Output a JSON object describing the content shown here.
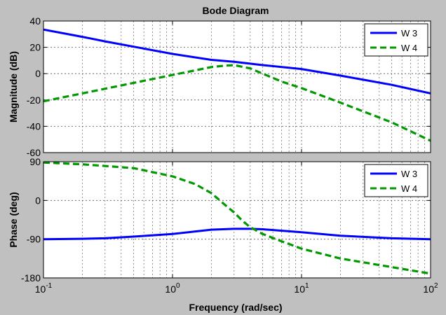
{
  "chart_data": {
    "type": "line",
    "title": "Bode Diagram",
    "xlabel": "Frequency  (rad/sec)",
    "x_scale": "log",
    "xlim": [
      0.1,
      100
    ],
    "x_ticks": [
      {
        "value": 0.1,
        "base": "10",
        "exp": "-1"
      },
      {
        "value": 1,
        "base": "10",
        "exp": "0"
      },
      {
        "value": 10,
        "base": "10",
        "exp": "1"
      },
      {
        "value": 100,
        "base": "10",
        "exp": "2"
      }
    ],
    "grid": true,
    "legend_position": "top-right",
    "colors": {
      "W 3": "#0000ff",
      "W 4": "#009900"
    },
    "panels": [
      {
        "id": "magnitude",
        "ylabel": "Magnitude (dB)",
        "ylim": [
          -60,
          40
        ],
        "y_ticks": [
          40,
          20,
          0,
          -20,
          -40,
          -60
        ],
        "series": [
          {
            "name": "W 3",
            "style": "solid",
            "x": [
              0.1,
              0.2,
              0.3,
              0.5,
              1,
              2,
              3,
              5,
              10,
              20,
              50,
              100
            ],
            "y": [
              33.5,
              28,
              24.5,
              20.5,
              15,
              10.5,
              9,
              6.5,
              3.5,
              -1.5,
              -8.5,
              -15
            ]
          },
          {
            "name": "W 4",
            "style": "dashed",
            "x": [
              0.1,
              0.2,
              0.3,
              0.5,
              1,
              1.5,
              2,
              2.5,
              3,
              4,
              5,
              7,
              10,
              20,
              50,
              100
            ],
            "y": [
              -21,
              -15,
              -11.5,
              -7,
              -1,
              2.5,
              5,
              6,
              6.5,
              4,
              0,
              -6,
              -11,
              -22,
              -37,
              -51
            ]
          }
        ]
      },
      {
        "id": "phase",
        "ylabel": "Phase (deg)",
        "ylim": [
          -180,
          90
        ],
        "y_ticks": [
          90,
          0,
          -90,
          -180
        ],
        "series": [
          {
            "name": "W 3",
            "style": "solid",
            "x": [
              0.1,
              0.2,
              0.3,
              0.5,
              1,
              2,
              3,
              4,
              5,
              10,
              20,
              50,
              100
            ],
            "y": [
              -90,
              -89,
              -88,
              -84,
              -78,
              -68,
              -66,
              -66,
              -67,
              -74,
              -82,
              -88,
              -90
            ]
          },
          {
            "name": "W 4",
            "style": "dashed",
            "x": [
              0.1,
              0.2,
              0.5,
              1,
              1.5,
              2,
              2.5,
              3,
              3.5,
              4,
              5,
              7,
              10,
              20,
              50,
              100
            ],
            "y": [
              88,
              84,
              75,
              56,
              38,
              17,
              -8,
              -28,
              -48,
              -62,
              -78,
              -95,
              -112,
              -135,
              -155,
              -170
            ]
          }
        ]
      }
    ]
  }
}
